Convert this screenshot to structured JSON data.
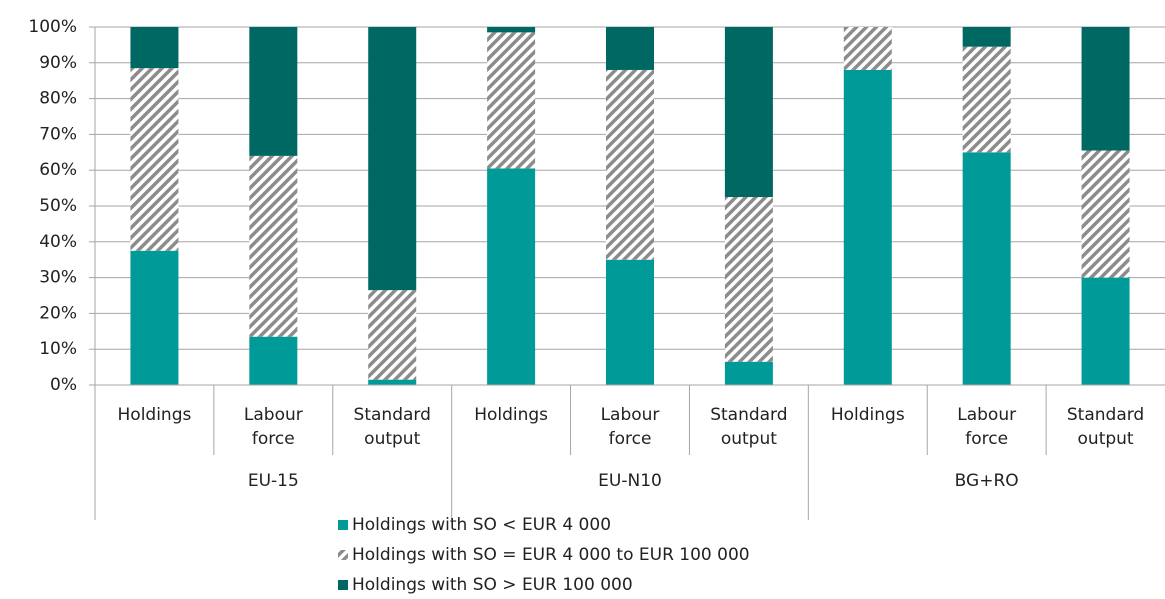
{
  "chart_data": {
    "type": "stacked-bar-100",
    "categories": [
      "Holdings",
      "Labour force",
      "Standard output",
      "Holdings",
      "Labour force",
      "Standard output",
      "Holdings",
      "Labour force",
      "Standard output"
    ],
    "groups": [
      "EU-15",
      "EU-N10",
      "BG+RO"
    ],
    "series": [
      {
        "name": "Holdings with SO < EUR 4 000",
        "color": "#009b98",
        "values": [
          37.5,
          13.5,
          1.5,
          60.5,
          35,
          6.5,
          88,
          65,
          30
        ]
      },
      {
        "name": "Holdings with SO = EUR 4 000 to EUR 100 000",
        "color": "#8c8c8c",
        "pattern": "diagonal-stripes",
        "values": [
          51,
          50.5,
          25,
          38,
          53,
          46,
          12,
          29.5,
          35.5
        ]
      },
      {
        "name": "Holdings with SO > EUR 100 000",
        "color": "#006863",
        "values": [
          11.5,
          36,
          73.5,
          1.5,
          12,
          47.5,
          0,
          5.5,
          34.5
        ]
      }
    ],
    "ylim": [
      0,
      100
    ],
    "yticks": [
      {
        "value": 0,
        "label": "0%"
      },
      {
        "value": 10,
        "label": "10%"
      },
      {
        "value": 20,
        "label": "20%"
      },
      {
        "value": 30,
        "label": "30%"
      },
      {
        "value": 40,
        "label": "40%"
      },
      {
        "value": 50,
        "label": "50%"
      },
      {
        "value": 60,
        "label": "60%"
      },
      {
        "value": 70,
        "label": "70%"
      },
      {
        "value": 80,
        "label": "80%"
      },
      {
        "value": 90,
        "label": "90%"
      },
      {
        "value": 100,
        "label": "100%"
      }
    ],
    "grid": true
  }
}
